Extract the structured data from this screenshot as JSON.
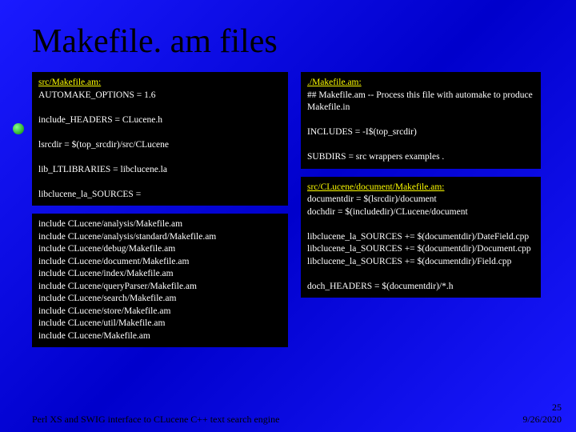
{
  "title": "Makefile. am files",
  "box1": {
    "header": "src/Makefile.am:",
    "l1": "AUTOMAKE_OPTIONS = 1.6",
    "l2": "include_HEADERS = CLucene.h",
    "l3": "lsrcdir = $(top_srcdir)/src/CLucene",
    "l4": "lib_LTLIBRARIES        = libclucene.la",
    "l5": "libclucene_la_SOURCES  ="
  },
  "box2": {
    "header": "./Makefile.am:",
    "l1": "## Makefile.am -- Process this file with automake to produce Makefile.in",
    "l2": "INCLUDES   =  -I$(top_srcdir)",
    "l3": "SUBDIRS = src wrappers examples ."
  },
  "box3": {
    "l1": "include CLucene/analysis/Makefile.am",
    "l2": "include CLucene/analysis/standard/Makefile.am",
    "l3": "include CLucene/debug/Makefile.am",
    "l4": "include CLucene/document/Makefile.am",
    "l5": "include CLucene/index/Makefile.am",
    "l6": "include CLucene/queryParser/Makefile.am",
    "l7": "include CLucene/search/Makefile.am",
    "l8": "include CLucene/store/Makefile.am",
    "l9": "include CLucene/util/Makefile.am",
    "l10": "include CLucene/Makefile.am"
  },
  "box4": {
    "header": "src/CLucene/document/Makefile.am:",
    "l1": "documentdir = $(lsrcdir)/document",
    "l2": "dochdir = $(includedir)/CLucene/document",
    "l3": "libclucene_la_SOURCES  +=  $(documentdir)/DateField.cpp",
    "l4": "libclucene_la_SOURCES  +=  $(documentdir)/Document.cpp",
    "l5": "libclucene_la_SOURCES  +=  $(documentdir)/Field.cpp",
    "l6": "doch_HEADERS    = $(documentdir)/*.h"
  },
  "footer": {
    "left": "Perl XS and SWIG interface to CLucene C++ text search engine",
    "page": "25",
    "date": "9/26/2020"
  }
}
